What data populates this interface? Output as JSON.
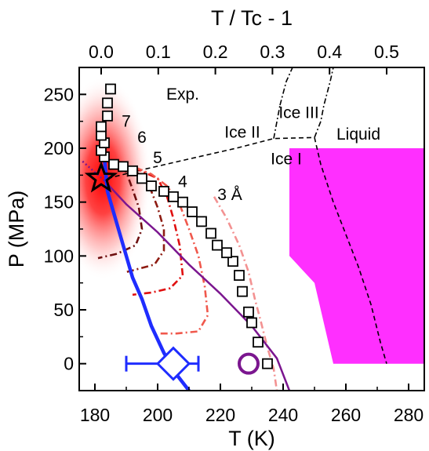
{
  "chart_data": {
    "type": "line",
    "title": "",
    "xlabel": "T (K)",
    "ylabel": "P (MPa)",
    "x2label": "T / Tc - 1",
    "xlim": [
      175,
      285
    ],
    "ylim": [
      -25,
      275
    ],
    "xticks": [
      180,
      200,
      220,
      240,
      260,
      280
    ],
    "yticks": [
      0,
      50,
      100,
      150,
      200,
      250
    ],
    "x2ticks": [
      "0.0",
      "0.1",
      "0.2",
      "0.3",
      "0.4",
      "0.5"
    ],
    "x2_tc": 182,
    "grid": false,
    "legend": "none",
    "colors": {
      "spinodal": "#1f2dff",
      "purple": "#7b168f",
      "magenta": "#ff2fff",
      "red": "#ff0000",
      "L7": "#6e0f0f",
      "L6": "#8e1c12",
      "L5": "#e01010",
      "L4": "#f0584c",
      "L3": "#f39292"
    },
    "critical_point": {
      "T": 182,
      "P": 172
    },
    "exp_squares": [
      [
        235,
        0
      ],
      [
        232,
        20
      ],
      [
        230,
        38
      ],
      [
        229,
        48
      ],
      [
        227,
        67
      ],
      [
        226,
        82
      ],
      [
        224,
        95
      ],
      [
        222,
        103
      ],
      [
        219,
        110
      ],
      [
        217,
        121
      ],
      [
        214,
        132
      ],
      [
        211,
        141
      ],
      [
        208,
        150
      ],
      [
        205,
        155
      ],
      [
        202,
        160
      ],
      [
        198,
        165
      ],
      [
        195,
        172
      ],
      [
        192,
        179
      ],
      [
        189,
        183
      ],
      [
        186,
        185
      ],
      [
        183,
        192
      ],
      [
        182,
        198
      ],
      [
        183,
        205
      ],
      [
        182,
        212
      ],
      [
        182,
        220
      ],
      [
        184,
        230
      ],
      [
        184,
        242
      ],
      [
        185,
        255
      ]
    ],
    "phase_boundaries": [
      {
        "name": "Ice I - liquid",
        "style": "dashed",
        "points": [
          [
            250,
            210
          ],
          [
            252,
            185
          ],
          [
            256,
            150
          ],
          [
            260,
            120
          ],
          [
            264,
            90
          ],
          [
            268,
            55
          ],
          [
            271,
            20
          ],
          [
            273,
            0
          ]
        ]
      },
      {
        "name": "Ice I - Ice II/III",
        "style": "dashed",
        "points": [
          [
            184,
            172
          ],
          [
            195,
            180
          ],
          [
            210,
            190
          ],
          [
            225,
            200
          ],
          [
            237,
            209
          ],
          [
            250,
            210
          ]
        ]
      },
      {
        "name": "Ice II - Ice III",
        "style": "dashdot",
        "points": [
          [
            237,
            209
          ],
          [
            239,
            240
          ]
        ]
      },
      {
        "name": "Ice III - liquid",
        "style": "dashdot",
        "points": [
          [
            250,
            210
          ],
          [
            252,
            225
          ],
          [
            253,
            240
          ],
          [
            255,
            262
          ],
          [
            256,
            275
          ]
        ]
      },
      {
        "name": "Ice II upper",
        "style": "dashdot",
        "points": [
          [
            239,
            240
          ],
          [
            241,
            262
          ],
          [
            243,
            275
          ]
        ]
      }
    ],
    "spinodal_line": [
      [
        183,
        192
      ],
      [
        184,
        160
      ],
      [
        186,
        140
      ],
      [
        188,
        120
      ],
      [
        190,
        100
      ],
      [
        192,
        80
      ],
      [
        195,
        60
      ],
      [
        198,
        35
      ],
      [
        202,
        10
      ],
      [
        206,
        -10
      ],
      [
        210,
        -25
      ]
    ],
    "purple_line": [
      [
        183,
        170
      ],
      [
        190,
        148
      ],
      [
        200,
        122
      ],
      [
        210,
        92
      ],
      [
        220,
        65
      ],
      [
        230,
        35
      ],
      [
        238,
        5
      ],
      [
        242,
        -25
      ]
    ],
    "purple_dotted": [
      [
        183,
        170
      ],
      [
        176,
        188
      ]
    ],
    "isochores": [
      {
        "label": "7",
        "points": [
          [
            184,
            188
          ],
          [
            186,
            185
          ],
          [
            190,
            178
          ],
          [
            192,
            162
          ],
          [
            194,
            145
          ],
          [
            195,
            125
          ],
          [
            193,
            110
          ],
          [
            187,
            102
          ],
          [
            181,
            98
          ]
        ]
      },
      {
        "label": "6",
        "points": [
          [
            186,
            186
          ],
          [
            190,
            182
          ],
          [
            195,
            175
          ],
          [
            198,
            160
          ],
          [
            200,
            145
          ],
          [
            202,
            125
          ],
          [
            202,
            105
          ],
          [
            199,
            92
          ],
          [
            190,
            85
          ]
        ]
      },
      {
        "label": "5",
        "points": [
          [
            188,
            185
          ],
          [
            194,
            180
          ],
          [
            200,
            172
          ],
          [
            203,
            155
          ],
          [
            205,
            135
          ],
          [
            207,
            110
          ],
          [
            208,
            82
          ],
          [
            204,
            70
          ],
          [
            198,
            66
          ],
          [
            192,
            64
          ]
        ]
      },
      {
        "label": "4",
        "points": [
          [
            193,
            182
          ],
          [
            198,
            176
          ],
          [
            203,
            165
          ],
          [
            207,
            148
          ],
          [
            210,
            125
          ],
          [
            213,
            100
          ],
          [
            215,
            72
          ],
          [
            216,
            45
          ],
          [
            213,
            30
          ],
          [
            206,
            28
          ],
          [
            200,
            28
          ]
        ]
      },
      {
        "label": "3 Å",
        "points": [
          [
            218,
            155
          ],
          [
            222,
            135
          ],
          [
            226,
            110
          ],
          [
            229,
            85
          ],
          [
            231,
            60
          ],
          [
            233,
            38
          ],
          [
            235,
            15
          ],
          [
            237,
            -5
          ],
          [
            238,
            -25
          ]
        ]
      }
    ],
    "region_magenta": [
      [
        242,
        200
      ],
      [
        285,
        200
      ],
      [
        285,
        0
      ],
      [
        256,
        0
      ],
      [
        250,
        75
      ],
      [
        242,
        100
      ]
    ],
    "error_point": {
      "T": 205,
      "P": 0,
      "xerr_low": 190,
      "xerr_high": 213
    },
    "open_circle": {
      "T": 229,
      "P": 0
    },
    "annotations": [
      {
        "text": "Exp.",
        "T": 208,
        "P": 245
      },
      {
        "text": "Ice III",
        "T": 245,
        "P": 228
      },
      {
        "text": "Ice II",
        "T": 227,
        "P": 210
      },
      {
        "text": "Liquid",
        "T": 264,
        "P": 208
      },
      {
        "text": "Ice I",
        "T": 241,
        "P": 185
      },
      {
        "text": "7",
        "T": 190,
        "P": 220
      },
      {
        "text": "6",
        "T": 195,
        "P": 205
      },
      {
        "text": "5",
        "T": 200,
        "P": 186
      },
      {
        "text": "4",
        "T": 208,
        "P": 164
      },
      {
        "text": "3 Å",
        "T": 223,
        "P": 152
      }
    ]
  }
}
